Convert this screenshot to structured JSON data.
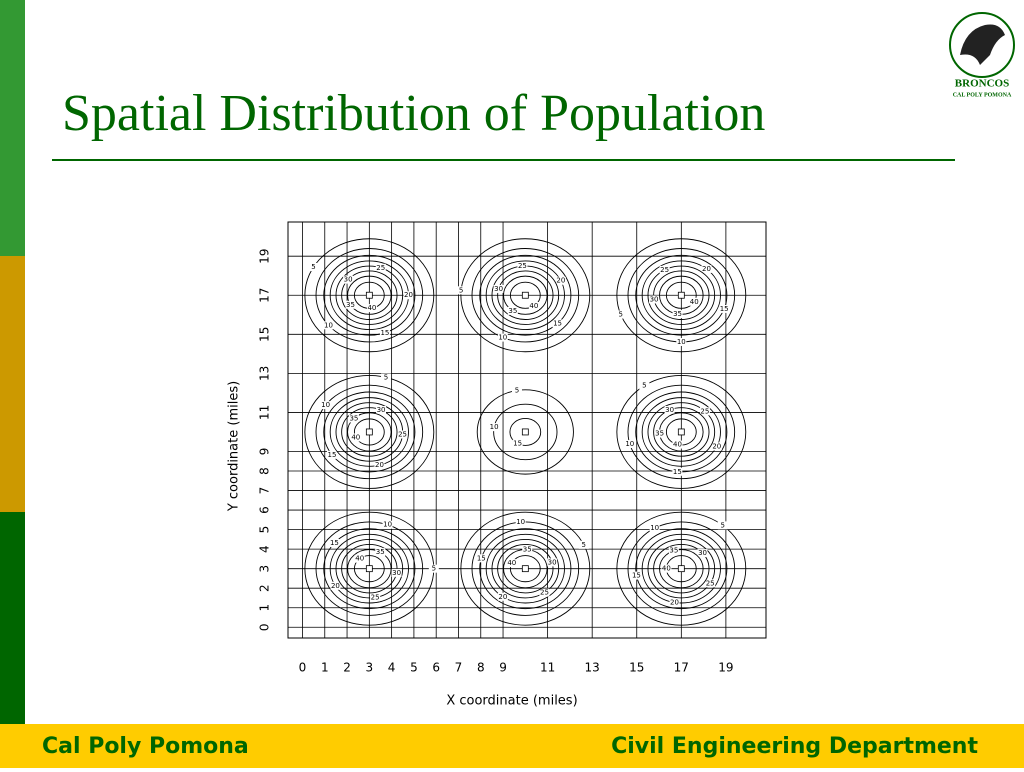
{
  "header": {
    "title": "Spatial Distribution of Population"
  },
  "logo": {
    "name": "BRONCOS",
    "subtitle": "CAL POLY POMONA"
  },
  "footer": {
    "left": "Cal Poly Pomona",
    "right": "Civil Engineering Department"
  },
  "chart_data": {
    "type": "contour",
    "x_label": "X coordinate (miles)",
    "y_label": "Y coordinate (miles)",
    "levels": [
      5,
      10,
      15,
      20,
      25,
      30,
      35,
      40
    ],
    "peaks": [
      {
        "x": 3,
        "y": 3,
        "max": 45
      },
      {
        "x": 10,
        "y": 3,
        "max": 45
      },
      {
        "x": 17,
        "y": 3,
        "max": 45
      },
      {
        "x": 3,
        "y": 10,
        "max": 45
      },
      {
        "x": 10,
        "y": 10,
        "max": 17
      },
      {
        "x": 17,
        "y": 10,
        "max": 45
      },
      {
        "x": 3,
        "y": 17,
        "max": 45
      },
      {
        "x": 10,
        "y": 17,
        "max": 45
      },
      {
        "x": 17,
        "y": 17,
        "max": 45
      }
    ],
    "xlim": [
      -0.65,
      20.8
    ],
    "ylim": [
      -0.55,
      20.75
    ],
    "xticks": [
      0,
      1,
      2,
      3,
      4,
      5,
      6,
      7,
      8,
      9,
      11,
      13,
      15,
      17,
      19
    ],
    "yticks": [
      0,
      1,
      2,
      3,
      4,
      5,
      6,
      7,
      8,
      9,
      11,
      13,
      15,
      17,
      19
    ],
    "grid": true,
    "color": "#000000"
  }
}
